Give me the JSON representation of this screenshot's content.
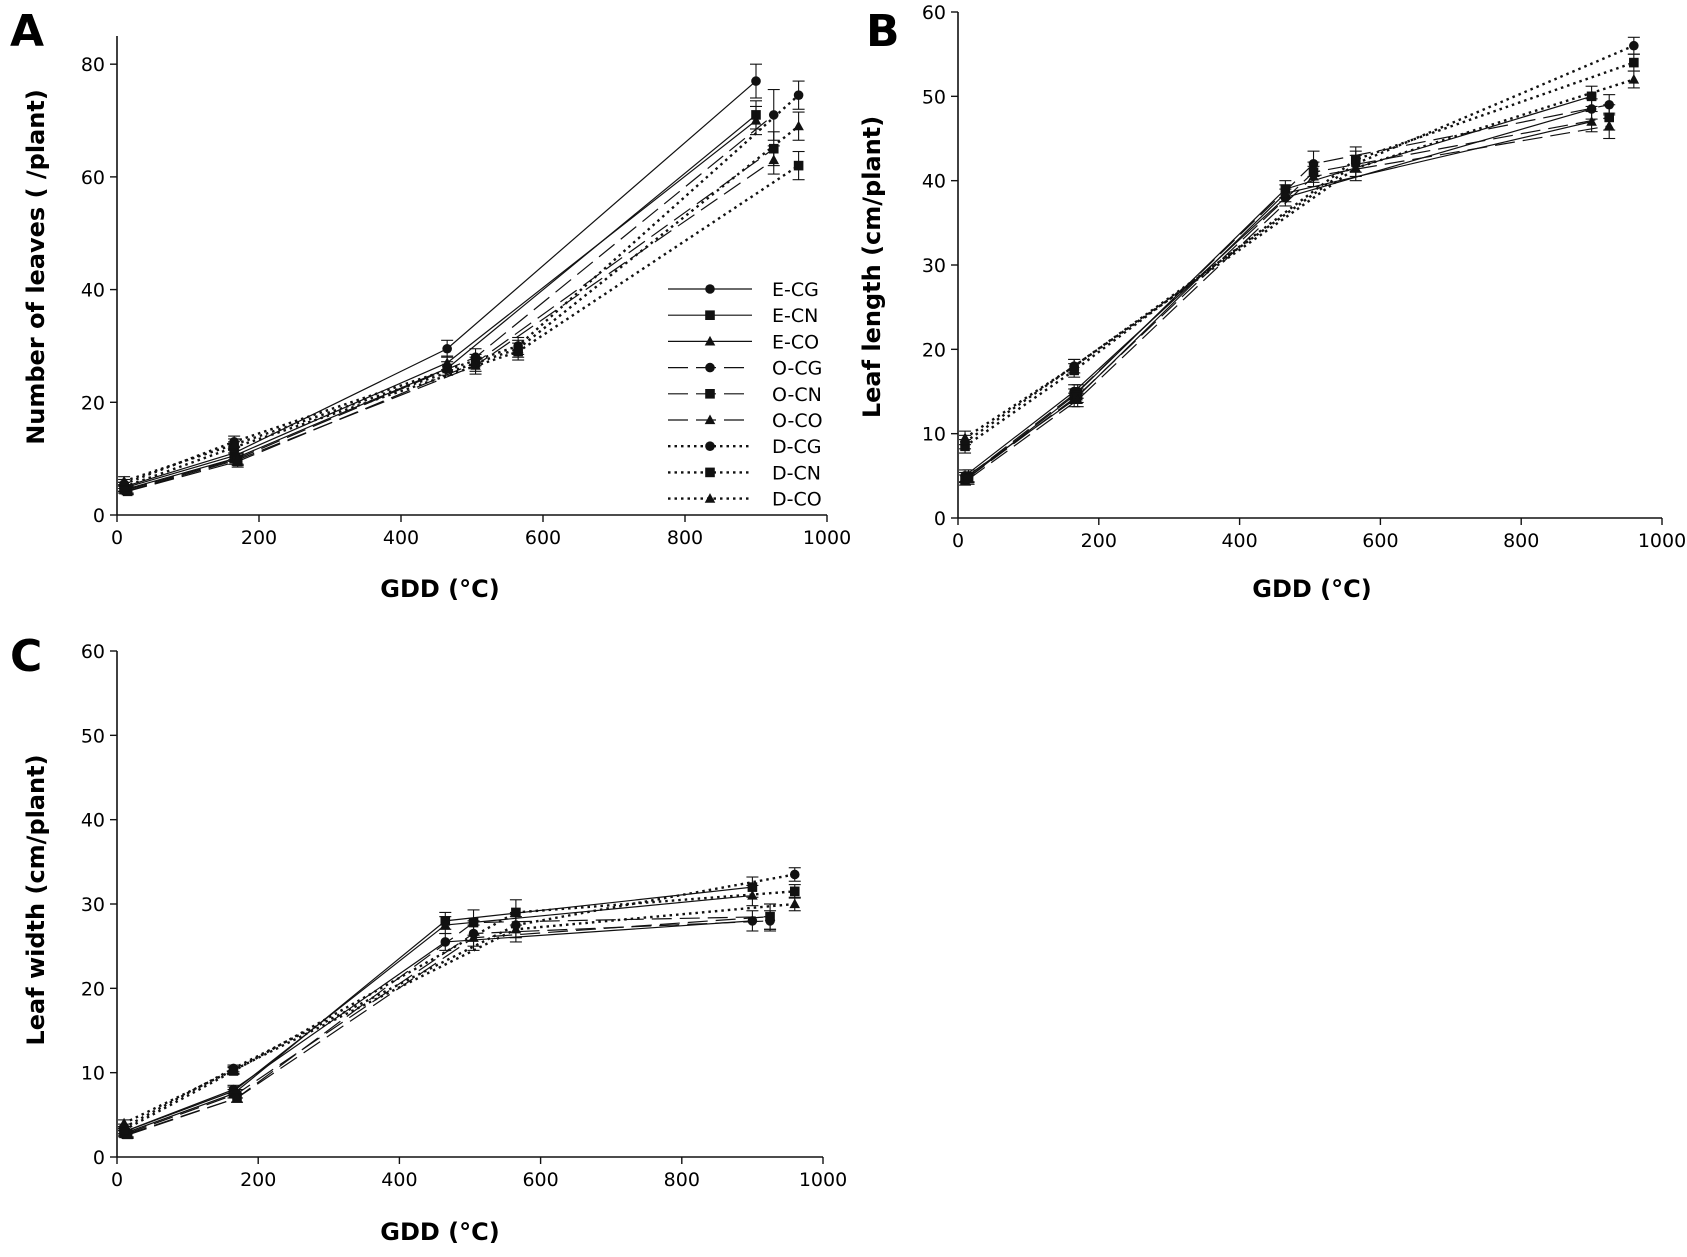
{
  "series_styles": {
    "E-CG": {
      "dash": "solid",
      "marker": "circle"
    },
    "E-CN": {
      "dash": "solid",
      "marker": "square"
    },
    "E-CO": {
      "dash": "solid",
      "marker": "triangle"
    },
    "O-CG": {
      "dash": "long-dash",
      "marker": "circle"
    },
    "O-CN": {
      "dash": "long-dash",
      "marker": "square"
    },
    "O-CO": {
      "dash": "long-dash",
      "marker": "triangle"
    },
    "D-CG": {
      "dash": "dotted",
      "marker": "circle"
    },
    "D-CN": {
      "dash": "dotted",
      "marker": "square"
    },
    "D-CO": {
      "dash": "dotted",
      "marker": "triangle"
    }
  },
  "chart_data": [
    {
      "panel": "A",
      "type": "line",
      "xlabel": "GDD (°C)",
      "ylabel": "Number of leaves ( /plant)",
      "xlim": [
        0,
        1000
      ],
      "ylim": [
        0,
        85
      ],
      "xticks": [
        0,
        200,
        400,
        600,
        800,
        1000
      ],
      "yticks": [
        0,
        20,
        40,
        60,
        80
      ],
      "legend": {
        "position": "bottom-right",
        "entries": [
          "E-CG",
          "E-CN",
          "E-CO",
          "O-CG",
          "O-CN",
          "O-CO",
          "D-CG",
          "D-CN",
          "D-CO"
        ]
      },
      "series": [
        {
          "name": "E-CG",
          "x": [
            10,
            165,
            465,
            900
          ],
          "y": [
            5,
            11,
            29.5,
            77
          ],
          "err": [
            0.8,
            1.2,
            1.5,
            3
          ]
        },
        {
          "name": "E-CN",
          "x": [
            10,
            165,
            465,
            900
          ],
          "y": [
            4.5,
            10,
            26,
            71
          ],
          "err": [
            0.6,
            1.0,
            1.2,
            2.5
          ]
        },
        {
          "name": "E-CO",
          "x": [
            10,
            165,
            465,
            900
          ],
          "y": [
            4.8,
            10.5,
            27,
            70
          ],
          "err": [
            0.6,
            1.0,
            1.2,
            2.5
          ]
        },
        {
          "name": "O-CG",
          "x": [
            15,
            170,
            505,
            925
          ],
          "y": [
            4.5,
            10,
            28,
            71
          ],
          "err": [
            0.6,
            1.0,
            1.5,
            4.5
          ]
        },
        {
          "name": "O-CN",
          "x": [
            15,
            170,
            505,
            925
          ],
          "y": [
            4.2,
            9.5,
            27,
            65
          ],
          "err": [
            0.6,
            1.0,
            1.5,
            3
          ]
        },
        {
          "name": "O-CO",
          "x": [
            15,
            170,
            505,
            925
          ],
          "y": [
            4.3,
            9.8,
            26.5,
            63
          ],
          "err": [
            0.6,
            1.0,
            1.5,
            2.5
          ]
        },
        {
          "name": "D-CG",
          "x": [
            10,
            165,
            565,
            960
          ],
          "y": [
            5.5,
            13,
            30,
            74.5
          ],
          "err": [
            0.8,
            1.0,
            1.5,
            2.5
          ]
        },
        {
          "name": "D-CN",
          "x": [
            10,
            165,
            565,
            960
          ],
          "y": [
            5,
            12,
            29,
            62
          ],
          "err": [
            0.8,
            1.0,
            1.5,
            2.5
          ]
        },
        {
          "name": "D-CO",
          "x": [
            10,
            165,
            565,
            960
          ],
          "y": [
            6,
            12.5,
            29.5,
            69
          ],
          "err": [
            0.8,
            1.0,
            1.5,
            2.5
          ]
        }
      ]
    },
    {
      "panel": "B",
      "type": "line",
      "xlabel": "GDD (°C)",
      "ylabel": "Leaf length (cm/plant)",
      "xlim": [
        0,
        1000
      ],
      "ylim": [
        0,
        60
      ],
      "xticks": [
        0,
        200,
        400,
        600,
        800,
        1000
      ],
      "yticks": [
        0,
        10,
        20,
        30,
        40,
        50,
        60
      ],
      "series": [
        {
          "name": "E-CG",
          "x": [
            10,
            165,
            465,
            900
          ],
          "y": [
            5,
            15,
            38,
            48.5
          ],
          "err": [
            0.7,
            0.8,
            1.0,
            1.2
          ]
        },
        {
          "name": "E-CN",
          "x": [
            10,
            165,
            465,
            900
          ],
          "y": [
            4.5,
            14.5,
            39,
            50
          ],
          "err": [
            0.6,
            0.8,
            1.0,
            1.2
          ]
        },
        {
          "name": "E-CO",
          "x": [
            10,
            165,
            465,
            900
          ],
          "y": [
            4.8,
            14,
            38.5,
            47
          ],
          "err": [
            0.6,
            0.8,
            1.0,
            1.2
          ]
        },
        {
          "name": "O-CG",
          "x": [
            15,
            170,
            505,
            925
          ],
          "y": [
            5,
            15,
            42,
            49
          ],
          "err": [
            0.7,
            0.8,
            1.5,
            1.2
          ]
        },
        {
          "name": "O-CN",
          "x": [
            15,
            170,
            505,
            925
          ],
          "y": [
            4.8,
            14.5,
            41,
            47.5
          ],
          "err": [
            0.6,
            0.8,
            1.2,
            1.5
          ]
        },
        {
          "name": "O-CO",
          "x": [
            15,
            170,
            505,
            925
          ],
          "y": [
            4.6,
            14,
            40.5,
            46.5
          ],
          "err": [
            0.6,
            0.8,
            1.2,
            1.5
          ]
        },
        {
          "name": "D-CG",
          "x": [
            10,
            165,
            565,
            960
          ],
          "y": [
            9,
            18,
            42,
            56
          ],
          "err": [
            0.8,
            0.8,
            1.5,
            1.0
          ]
        },
        {
          "name": "D-CN",
          "x": [
            10,
            165,
            565,
            960
          ],
          "y": [
            8.5,
            17.5,
            42.5,
            54
          ],
          "err": [
            0.8,
            0.8,
            1.5,
            1.0
          ]
        },
        {
          "name": "D-CO",
          "x": [
            10,
            165,
            565,
            960
          ],
          "y": [
            9.5,
            18,
            41.5,
            52
          ],
          "err": [
            0.8,
            0.8,
            1.5,
            1.0
          ]
        }
      ]
    },
    {
      "panel": "C",
      "type": "line",
      "xlabel": "GDD (°C)",
      "ylabel": "Leaf width (cm/plant)",
      "xlim": [
        0,
        1000
      ],
      "ylim": [
        0,
        60
      ],
      "xticks": [
        0,
        200,
        400,
        600,
        800,
        1000
      ],
      "yticks": [
        0,
        10,
        20,
        30,
        40,
        50,
        60
      ],
      "series": [
        {
          "name": "E-CG",
          "x": [
            10,
            165,
            465,
            900
          ],
          "y": [
            3,
            8,
            25.5,
            28
          ],
          "err": [
            0.4,
            0.5,
            1.0,
            1.2
          ]
        },
        {
          "name": "E-CN",
          "x": [
            10,
            165,
            465,
            900
          ],
          "y": [
            2.8,
            7.5,
            28,
            32
          ],
          "err": [
            0.4,
            0.5,
            1.0,
            1.2
          ]
        },
        {
          "name": "E-CO",
          "x": [
            10,
            165,
            465,
            900
          ],
          "y": [
            3,
            7.8,
            27.5,
            31
          ],
          "err": [
            0.4,
            0.5,
            1.0,
            1.2
          ]
        },
        {
          "name": "O-CG",
          "x": [
            15,
            170,
            505,
            925
          ],
          "y": [
            2.8,
            7.5,
            26.5,
            28
          ],
          "err": [
            0.4,
            0.5,
            1.5,
            1.2
          ]
        },
        {
          "name": "O-CN",
          "x": [
            15,
            170,
            505,
            925
          ],
          "y": [
            2.7,
            7,
            27.8,
            28.5
          ],
          "err": [
            0.4,
            0.5,
            1.5,
            1.5
          ]
        },
        {
          "name": "O-CO",
          "x": [
            15,
            170,
            505,
            925
          ],
          "y": [
            2.6,
            7,
            26,
            28.5
          ],
          "err": [
            0.4,
            0.5,
            1.5,
            1.5
          ]
        },
        {
          "name": "D-CG",
          "x": [
            10,
            165,
            565,
            960
          ],
          "y": [
            3.5,
            10.5,
            27.5,
            33.5
          ],
          "err": [
            0.4,
            0.4,
            1.5,
            0.8
          ]
        },
        {
          "name": "D-CN",
          "x": [
            10,
            165,
            565,
            960
          ],
          "y": [
            3.2,
            10.2,
            29,
            31.5
          ],
          "err": [
            0.4,
            0.4,
            1.5,
            0.8
          ]
        },
        {
          "name": "D-CO",
          "x": [
            10,
            165,
            565,
            960
          ],
          "y": [
            4,
            10.3,
            27,
            30
          ],
          "err": [
            0.4,
            0.4,
            1.5,
            0.8
          ]
        }
      ]
    }
  ]
}
